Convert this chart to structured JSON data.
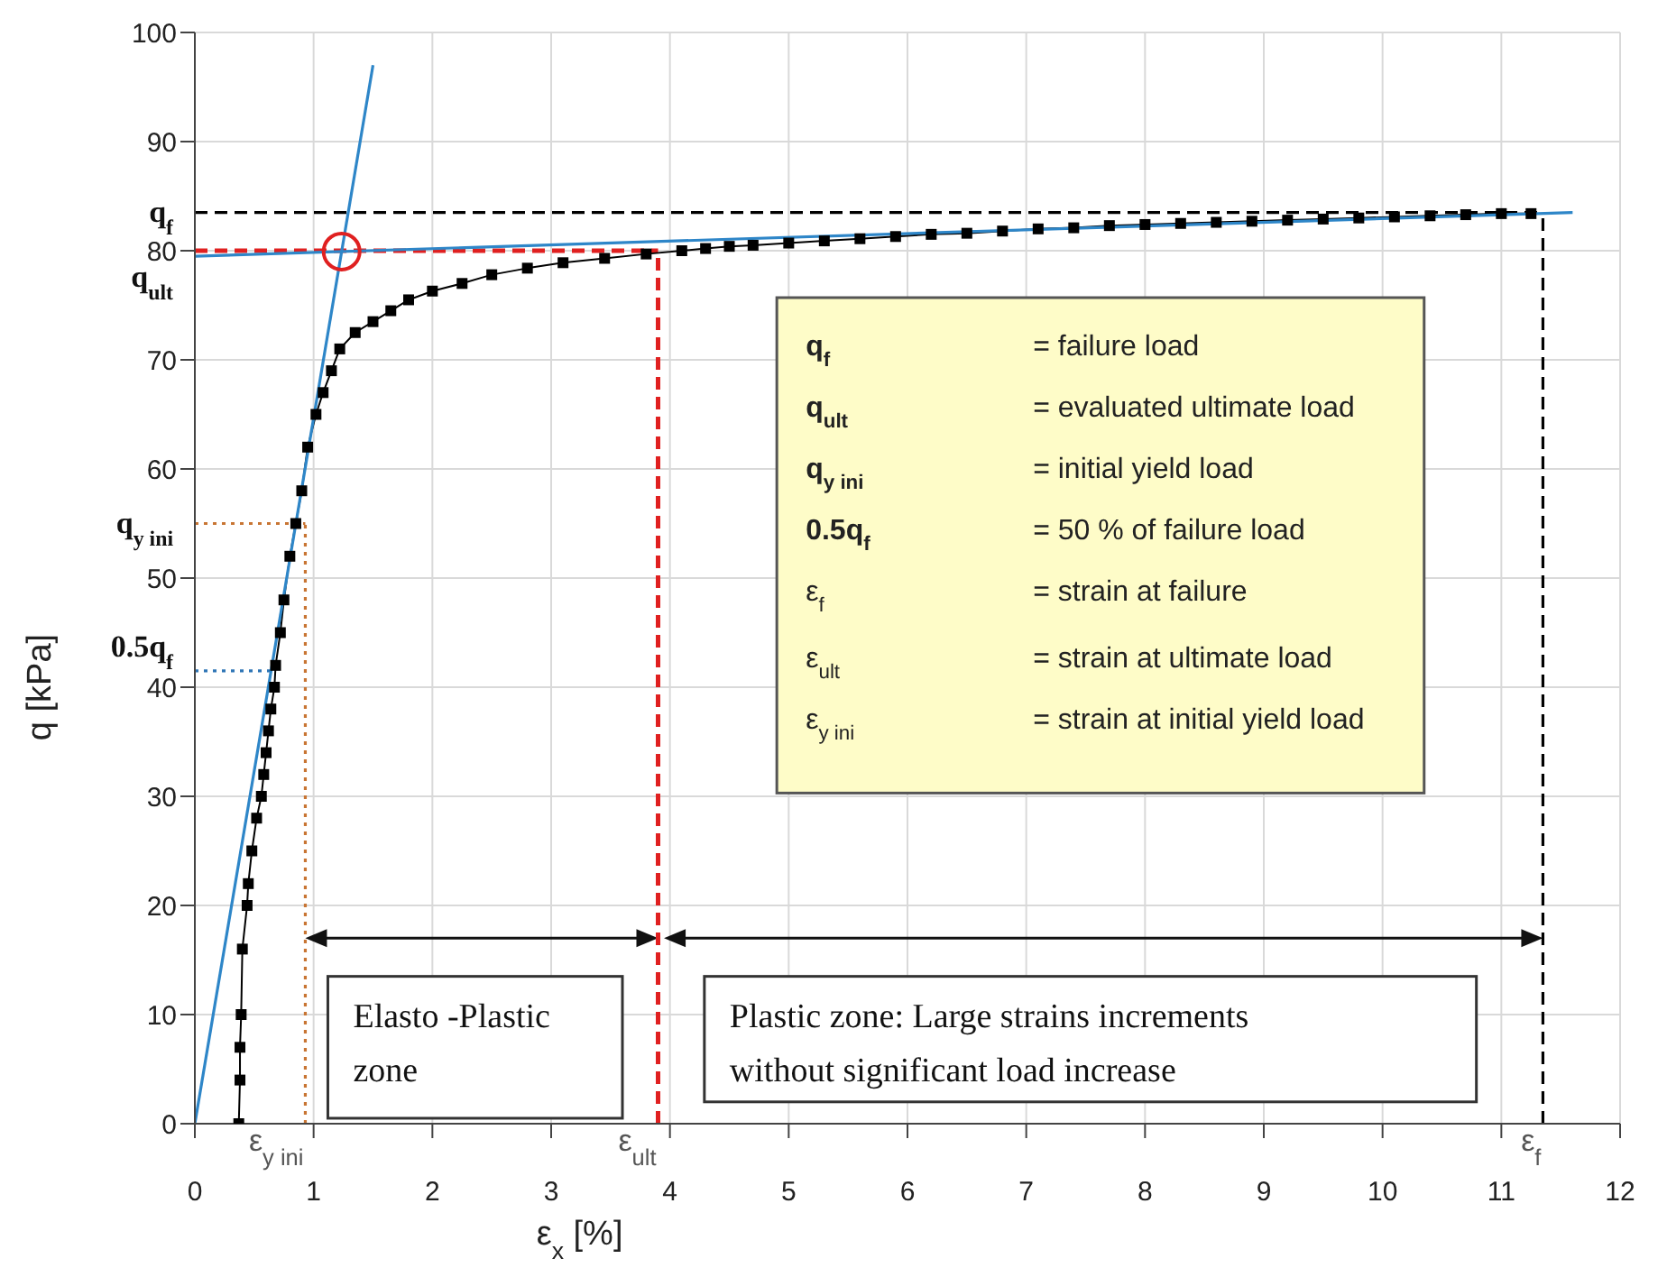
{
  "chart_data": {
    "type": "line",
    "xlabel": "ε$_{x}$ [%]",
    "ylabel": "q [kPa]",
    "xlim": [
      0,
      12
    ],
    "xticks": [
      0,
      1,
      2,
      3,
      4,
      5,
      6,
      7,
      8,
      9,
      10,
      11,
      12
    ],
    "ylim": [
      0,
      100
    ],
    "yticks": [
      0,
      10,
      20,
      30,
      40,
      50,
      60,
      70,
      80,
      90,
      100
    ],
    "grid": true,
    "series": [
      {
        "color": "#000000",
        "marker": "square",
        "x": [
          0.37,
          0.38,
          0.38,
          0.39,
          0.4,
          0.44,
          0.45,
          0.48,
          0.52,
          0.56,
          0.58,
          0.6,
          0.62,
          0.64,
          0.67,
          0.68,
          0.72,
          0.75,
          0.8,
          0.85,
          0.9,
          0.95,
          1.02,
          1.08,
          1.15,
          1.22,
          1.35,
          1.5,
          1.65,
          1.8,
          2.0,
          2.25,
          2.5,
          2.8,
          3.1,
          3.45,
          3.8,
          4.1,
          4.3,
          4.5,
          4.7,
          5.0,
          5.3,
          5.6,
          5.9,
          6.2,
          6.5,
          6.8,
          7.1,
          7.4,
          7.7,
          8.0,
          8.3,
          8.6,
          8.9,
          9.2,
          9.5,
          9.8,
          10.1,
          10.4,
          10.7,
          11.0,
          11.25
        ],
        "values": [
          0,
          4,
          7,
          10,
          16,
          20,
          22,
          25,
          28,
          30,
          32,
          34,
          36,
          38,
          40,
          42,
          45,
          48,
          52,
          55,
          58,
          62,
          65,
          67,
          69,
          71,
          72.5,
          73.5,
          74.5,
          75.5,
          76.3,
          77,
          77.8,
          78.4,
          78.9,
          79.3,
          79.7,
          80,
          80.2,
          80.4,
          80.5,
          80.7,
          80.9,
          81.1,
          81.3,
          81.5,
          81.6,
          81.8,
          82,
          82.1,
          82.3,
          82.4,
          82.5,
          82.6,
          82.7,
          82.8,
          82.9,
          83,
          83.1,
          83.2,
          83.3,
          83.4,
          83.4
        ]
      },
      {
        "color": "#2e86c8",
        "marker": "none",
        "x": [
          0,
          1.5
        ],
        "values": [
          0,
          97
        ]
      },
      {
        "color": "#2e86c8",
        "marker": "none",
        "x": [
          0,
          11.6
        ],
        "values": [
          79.5,
          83.5
        ]
      }
    ],
    "ref_lines": [
      {
        "axis": "y",
        "value": 83.5,
        "label": "q$_{f}$",
        "color": "#000000",
        "line_style": "dashed"
      },
      {
        "axis": "y",
        "value": 80,
        "label": "q$_{ult}$",
        "color": "#e02020",
        "line_style": "dashed"
      },
      {
        "axis": "y",
        "value": 55,
        "label": "q$_{y ini}$",
        "color": "#c87533",
        "line_style": "dotted"
      },
      {
        "axis": "y",
        "value": 41.5,
        "label": "0.5q$_{f}$",
        "color": "#2e75b6",
        "line_style": "dotted"
      },
      {
        "axis": "x",
        "value": 0.93,
        "label": "ε$_{y ini}$",
        "color": "#c87533",
        "line_style": "dotted"
      },
      {
        "axis": "x",
        "value": 3.9,
        "label": "ε$_{ult}$",
        "color": "#e02020",
        "line_style": "dashed"
      },
      {
        "axis": "x",
        "value": 11.35,
        "label": "ε$_{f}$",
        "color": "#000000",
        "line_style": "dashed"
      }
    ],
    "annotations": [
      "q$_{f}$ = failure load",
      "q$_{ult}$ = evaluated ultimate load",
      "q$_{y ini}$ = initial yield load",
      "0.5q$_{f}$ = 50 % of failure load",
      "ε$_{f}$ = strain at failure",
      "ε$_{ult}$ = strain at ultimate load",
      "ε$_{y ini}$ = strain at initial yield load",
      "Elasto -Plastic zone",
      "Plastic zone: Large strains increments without significant load increase"
    ]
  }
}
